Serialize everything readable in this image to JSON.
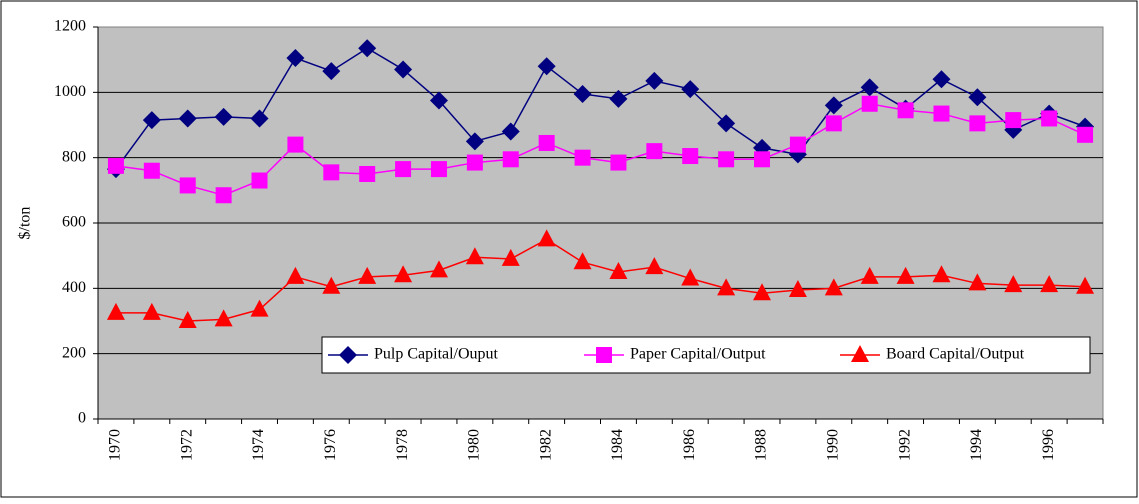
{
  "chart_data": {
    "type": "line",
    "y_label": "$/ton",
    "categories": [
      "1970",
      null,
      "1972",
      null,
      "1974",
      null,
      "1976",
      null,
      "1978",
      null,
      "1980",
      null,
      "1982",
      null,
      "1984",
      null,
      "1986",
      null,
      "1988",
      null,
      "1990",
      null,
      "1992",
      null,
      "1994",
      null,
      "1996",
      null
    ],
    "series": [
      {
        "name": "Pulp Capital/Ouput",
        "color": "#000080",
        "marker": "diamond",
        "values": [
          765,
          915,
          920,
          925,
          920,
          1105,
          1065,
          1135,
          1070,
          975,
          850,
          880,
          1080,
          995,
          980,
          1035,
          1010,
          905,
          830,
          810,
          960,
          1015,
          950,
          1040,
          985,
          885,
          935,
          895
        ]
      },
      {
        "name": "Paper Capital/Output",
        "color": "#ff00ff",
        "marker": "square",
        "values": [
          775,
          760,
          715,
          685,
          730,
          840,
          755,
          750,
          765,
          765,
          785,
          795,
          845,
          800,
          785,
          820,
          805,
          795,
          795,
          840,
          905,
          965,
          945,
          935,
          905,
          915,
          920,
          870
        ]
      },
      {
        "name": "Board Capital/Output",
        "color": "#ff0000",
        "marker": "triangle",
        "values": [
          325,
          325,
          300,
          305,
          335,
          435,
          405,
          435,
          440,
          455,
          495,
          490,
          550,
          480,
          450,
          465,
          430,
          400,
          385,
          395,
          400,
          435,
          435,
          440,
          415,
          410,
          410,
          405
        ]
      }
    ],
    "ylim": [
      0,
      1200
    ],
    "yticks": [
      0,
      200,
      400,
      600,
      800,
      1000,
      1200
    ],
    "grid": true,
    "legend": "lower right",
    "background": "#c0c0c0"
  }
}
